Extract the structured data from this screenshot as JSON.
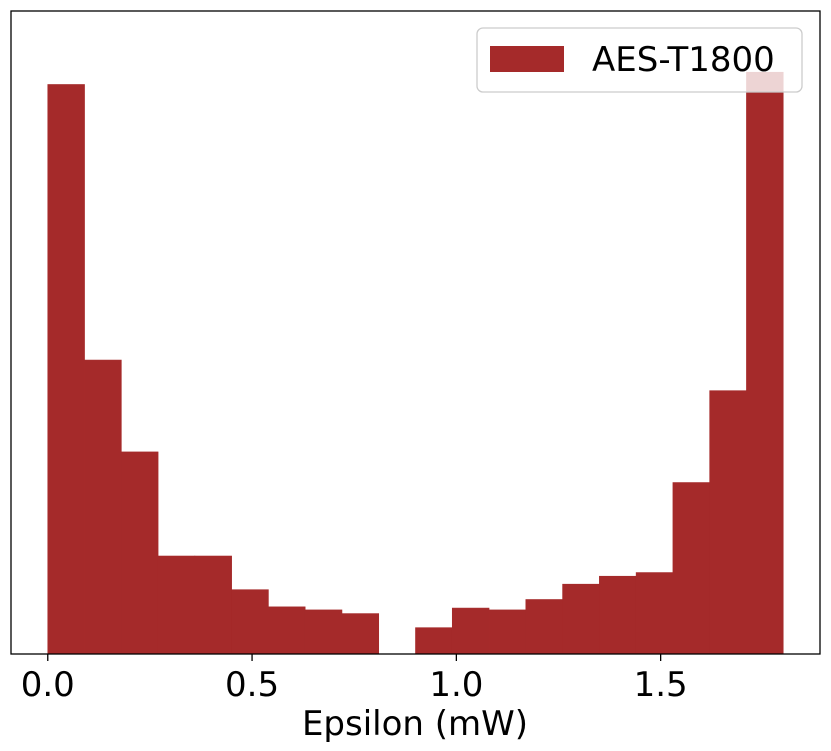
{
  "chart_data": {
    "type": "bar",
    "subtype": "histogram",
    "xlabel": "Epsilon (mW)",
    "ylabel": "",
    "title": "",
    "xlim": [
      -0.09,
      1.89
    ],
    "ylim": [
      0,
      1.05
    ],
    "x_ticks": [
      0.0,
      0.5,
      1.0,
      1.5
    ],
    "x_tick_labels": [
      "0.0",
      "0.5",
      "1.0",
      "1.5"
    ],
    "y_ticks_visible": false,
    "grid": false,
    "legend": {
      "position": "top-right",
      "entries": [
        "AES-T1800"
      ]
    },
    "bin_edges": [
      0.0,
      0.09,
      0.18,
      0.27,
      0.36,
      0.45,
      0.54,
      0.63,
      0.72,
      0.81,
      0.9,
      0.99,
      1.08,
      1.17,
      1.26,
      1.35,
      1.44,
      1.53,
      1.62,
      1.71,
      1.8
    ],
    "series": [
      {
        "name": "AES-T1800",
        "color": "#a52a2a",
        "values": [
          0.93,
          0.48,
          0.33,
          0.16,
          0.16,
          0.105,
          0.077,
          0.072,
          0.066,
          0.0,
          0.043,
          0.075,
          0.072,
          0.089,
          0.114,
          0.127,
          0.133,
          0.28,
          0.43,
          0.95
        ]
      }
    ]
  }
}
